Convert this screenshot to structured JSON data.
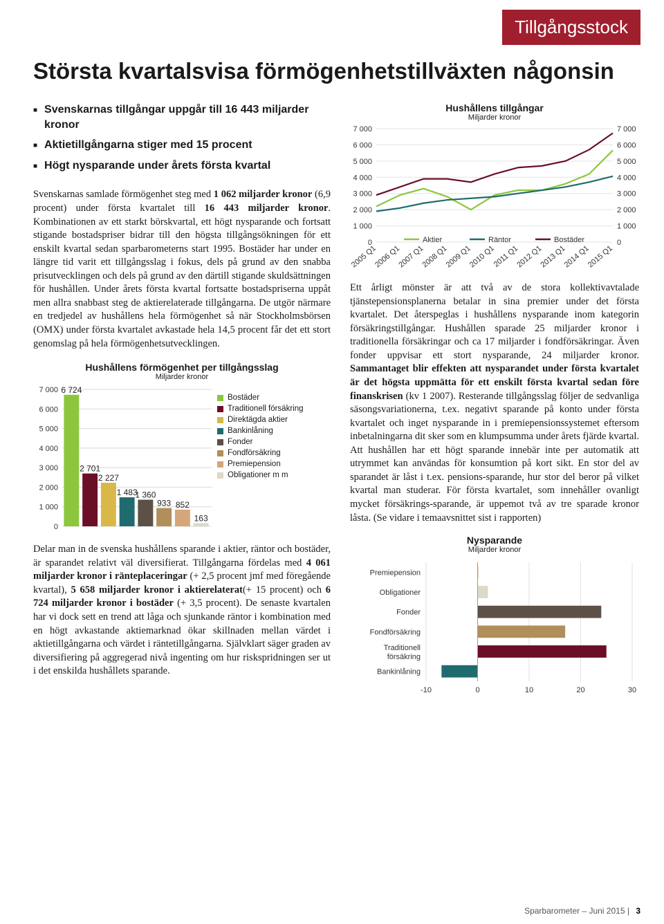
{
  "header": {
    "title": "Tillgångsstock"
  },
  "title": "Största kvartalsvisa förmögenhetstillväxten någonsin",
  "bullets": [
    "Svenskarnas tillgångar uppgår till 16 443 miljarder kronor",
    "Aktietillgångarna stiger med 15 procent",
    "Högt nysparande under årets första kvartal"
  ],
  "para1": "Svenskarnas samlade förmögenhet steg med <b>1 062 miljarder kronor</b> (6,9 procent) under första kvartalet till <b>16 443 miljarder kronor</b>. Kombinationen av ett starkt börskvartal, ett högt nysparande och fortsatt stigande bostadspriser bidrar till den högsta tillgångsökningen för ett enskilt kvartal sedan sparbarometerns start 1995. Bostäder har under en längre tid varit ett tillgångsslag i fokus, dels på grund av den snabba prisutvecklingen och dels på grund av den därtill stigande skuldsättningen för hushållen. Under årets första kvartal fortsatte bostadspriserna uppåt men allra snabbast steg de aktierelaterade tillgångarna. De utgör närmare en tredjedel av hushållens hela förmögenhet så när Stockholmsbörsen (OMX) under första kvartalet avkastade hela 14,5 procent får det ett stort genomslag på hela förmögenhetsutvecklingen.",
  "para2": "Delar man in de svenska hushållens sparande i aktier, räntor och bostäder, är sparandet relativt väl diversifierat. Tillgångarna fördelas med <b>4 061 miljarder kronor i ränteplaceringar</b> (+ 2,5 procent jmf med föregående kvartal), <b>5 658 miljarder kronor i aktierelaterat</b>(+ 15 procent) och <b>6 724 miljarder kronor i bostäder</b> (+ 3,5 procent). De senaste kvartalen har vi dock sett en trend att låga och sjunkande räntor i kombination med en högt avkastande aktiemarknad ökar skillnaden mellan värdet i aktietillgångarna och värdet i räntetillgångarna. Självklart säger graden av diversifiering på aggregerad nivå ingenting om hur riskspridningen ser ut i det enskilda hushållets sparande.",
  "para_r": "Ett årligt mönster är att två av de stora kollektivavtalade tjänstepensionsplanerna betalar in sina premier under det första kvartalet. Det återspeglas i hushållens nysparande inom kategorin försäkringstillgångar. Hushållen sparade 25 miljarder kronor i traditionella försäkringar och ca 17 miljarder i fondförsäkringar. Även fonder uppvisar ett stort nysparande, 24 miljarder kronor. <b>Sammantaget blir effekten att nysparandet under första kvartalet är det högsta uppmätta för ett enskilt första kvartal sedan före finanskrisen</b> (kv 1 2007). Resterande tillgångsslag följer de sedvanliga säsongsvariationerna, t.ex. negativt sparande på konto under första kvartalet och inget nysparande in i premiepensionssystemet eftersom inbetalningarna dit sker som en klumpsumma under årets fjärde kvartal. Att hushållen har ett högt sparande innebär inte per automatik att utrymmet kan användas för konsumtion på kort sikt. En stor del av sparandet är låst i t.ex. pensions-sparande, hur stor del beror på vilket kvartal man studerar. För första kvartalet, som innehåller ovanligt mycket försäkrings-sparande, är uppemot två av tre sparade kronor låsta. (Se vidare i temaavsnittet sist i rapporten)",
  "bar_chart": {
    "title": "Hushållens förmögenhet per tillgångsslag",
    "subtitle": "Miljarder kronor",
    "ylim": [
      0,
      7000
    ],
    "ytick_step": 1000,
    "items": [
      {
        "label": "Bostäder",
        "value": 6724,
        "color": "#8cc63e"
      },
      {
        "label": "Traditionell försäkring",
        "value": 2701,
        "color": "#6b0f26"
      },
      {
        "label": "Direktägda aktier",
        "value": 2227,
        "color": "#d9b84a"
      },
      {
        "label": "Bankinlåning",
        "value": 1483,
        "color": "#1f6b6e"
      },
      {
        "label": "Fonder",
        "value": 1360,
        "color": "#5d5046"
      },
      {
        "label": "Fondförsäkring",
        "value": 933,
        "color": "#b08f5a"
      },
      {
        "label": "Premiepension",
        "value": 852,
        "color": "#d6a67a"
      },
      {
        "label": "Obligationer m m",
        "value": 163,
        "color": "#ddd9c7"
      }
    ]
  },
  "line_chart": {
    "title": "Hushållens tillgångar",
    "subtitle": "Miljarder kronor",
    "ylim": [
      0,
      7000
    ],
    "ytick_step": 1000,
    "x_labels": [
      "2005 Q1",
      "2006 Q1",
      "2007 Q1",
      "2008 Q1",
      "2009 Q1",
      "2010 Q1",
      "2011 Q1",
      "2012 Q1",
      "2013 Q1",
      "2014 Q1",
      "2015 Q1"
    ],
    "series": [
      {
        "name": "Aktier",
        "color": "#8cc63e",
        "values": [
          2200,
          2900,
          3300,
          2800,
          2000,
          2900,
          3200,
          3200,
          3600,
          4200,
          5658
        ]
      },
      {
        "name": "Räntor",
        "color": "#1f6b6e",
        "values": [
          1900,
          2100,
          2400,
          2600,
          2700,
          2800,
          3000,
          3200,
          3400,
          3700,
          4061
        ]
      },
      {
        "name": "Bostäder",
        "color": "#6b0f26",
        "values": [
          2900,
          3400,
          3900,
          3900,
          3700,
          4200,
          4600,
          4700,
          5000,
          5700,
          6724
        ]
      }
    ]
  },
  "hbar_chart": {
    "title": "Nysparande",
    "subtitle": "Miljarder kronor",
    "xlim": [
      -10,
      30
    ],
    "xticks": [
      -10,
      0,
      10,
      20,
      30
    ],
    "items": [
      {
        "label": "Premiepension",
        "value": 0,
        "color": "#d6a67a"
      },
      {
        "label": "Obligationer",
        "value": 2,
        "color": "#ddd9c7"
      },
      {
        "label": "Fonder",
        "value": 24,
        "color": "#5d5046"
      },
      {
        "label": "Fondförsäkring",
        "value": 17,
        "color": "#b08f5a"
      },
      {
        "label": "Traditionell försäkring",
        "value": 25,
        "color": "#6b0f26"
      },
      {
        "label": "Bankinlåning",
        "value": -7,
        "color": "#1f6b6e"
      }
    ]
  },
  "footer": {
    "text": "Sparbarometer – Juni 2015",
    "page": "3"
  }
}
